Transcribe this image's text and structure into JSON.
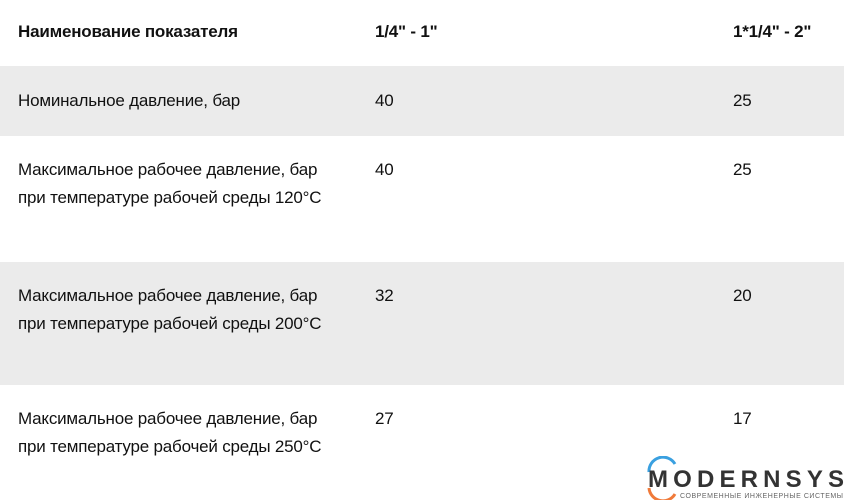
{
  "table": {
    "headers": [
      "Наименование показателя",
      "1/4\" - 1\"",
      "1*1/4\" - 2\""
    ],
    "rows": [
      {
        "name": "Номинальное давление, бар",
        "v1": "40",
        "v2": "25"
      },
      {
        "name": "Максимальное рабочее давление, бар при температуре рабочей среды 120°C",
        "v1": "40",
        "v2": "25"
      },
      {
        "name": "Максимальное рабочее давление, бар при температуре рабочей среды 200°C",
        "v1": "32",
        "v2": "20"
      },
      {
        "name": "Максимальное рабочее давление, бар при температуре рабочей среды 250°C",
        "v1": "27",
        "v2": "17"
      }
    ]
  },
  "logo": {
    "name": "MODERNSYS",
    "tagline": "СОВРЕМЕННЫЕ ИНЖЕНЕРНЫЕ СИСТЕМЫ"
  },
  "colors": {
    "row_alt": "#ebebeb",
    "logo_blue": "#3aa0e0",
    "logo_orange": "#f07a3a",
    "logo_dark": "#333333"
  }
}
